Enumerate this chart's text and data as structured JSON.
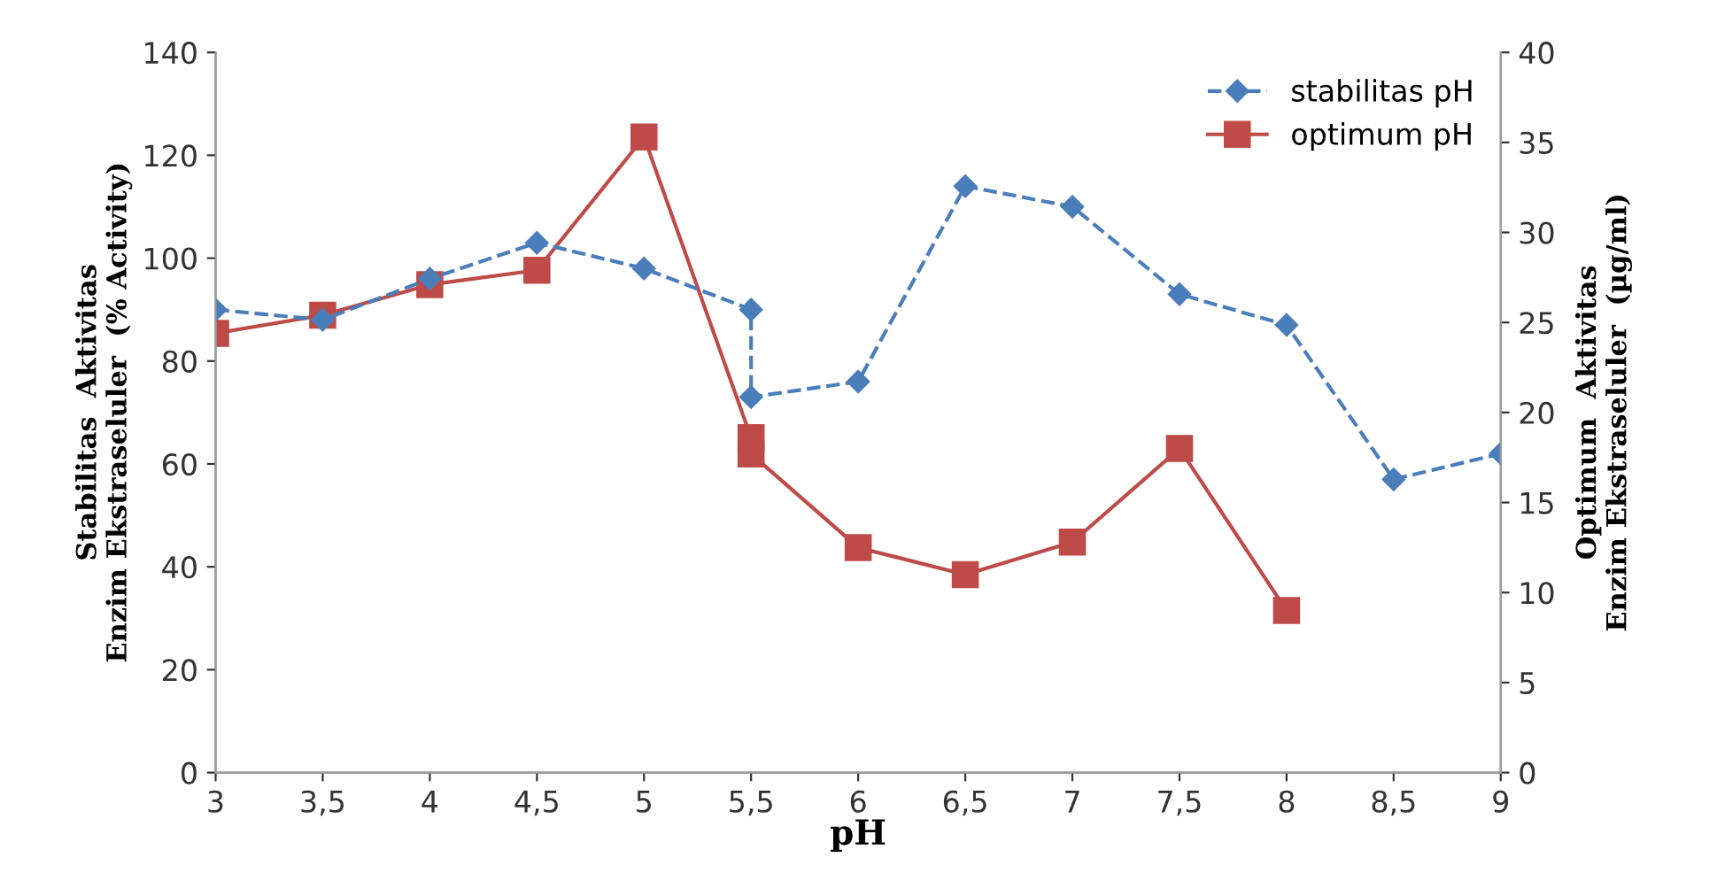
{
  "chart_data": {
    "type": "line",
    "xlabel": "pH",
    "ylabel": "Stabilitas  Aktivitas\nEnzim Ekstraseluler  (% Activity)",
    "y2label": "Optimum  Aktivitas\nEnzim Ekstraseluler  (µg/ml)",
    "xlim": [
      3,
      9
    ],
    "xticks": [
      3,
      {
        "value": 3.5,
        "label": "3,5"
      },
      4,
      {
        "value": 4.5,
        "label": "4,5"
      },
      5,
      {
        "value": 5.5,
        "label": "5,5"
      },
      6,
      {
        "value": 6.5,
        "label": "6,5"
      },
      7,
      {
        "value": 7.5,
        "label": "7,5"
      },
      8,
      {
        "value": 8.5,
        "label": "8,5"
      },
      9
    ],
    "ylim": [
      0,
      140
    ],
    "yticks": [
      0,
      20,
      40,
      60,
      80,
      100,
      120,
      140
    ],
    "y2lim": [
      0,
      40
    ],
    "y2ticks": [
      0,
      5,
      10,
      15,
      20,
      25,
      30,
      35,
      40
    ],
    "grid": false,
    "legend": "top right",
    "series": [
      {
        "name": "stabilitas pH",
        "color": "#4a7ebb",
        "marker": "diamond",
        "line_style": "dashed",
        "x": [
          3,
          3.5,
          4,
          4.5,
          5,
          5.5,
          5.5,
          6,
          6.5,
          7,
          7.5,
          8,
          8.5,
          9
        ],
        "values": [
          90,
          88,
          96,
          103,
          98,
          90,
          73,
          76,
          114,
          110,
          93,
          87,
          57,
          62
        ]
      },
      {
        "name": "optimum pH",
        "color": "#be4b48",
        "marker": "square",
        "line_style": "solid",
        "axis": "y2",
        "x": [
          3,
          3.5,
          4,
          4.5,
          5,
          5.5,
          5.5,
          6,
          6.5,
          7,
          7.5,
          8
        ],
        "values": [
          24.4,
          25.4,
          27.1,
          27.9,
          35.3,
          18.6,
          17.7,
          12.5,
          11.0,
          12.8,
          18.0,
          9.0
        ]
      }
    ]
  }
}
